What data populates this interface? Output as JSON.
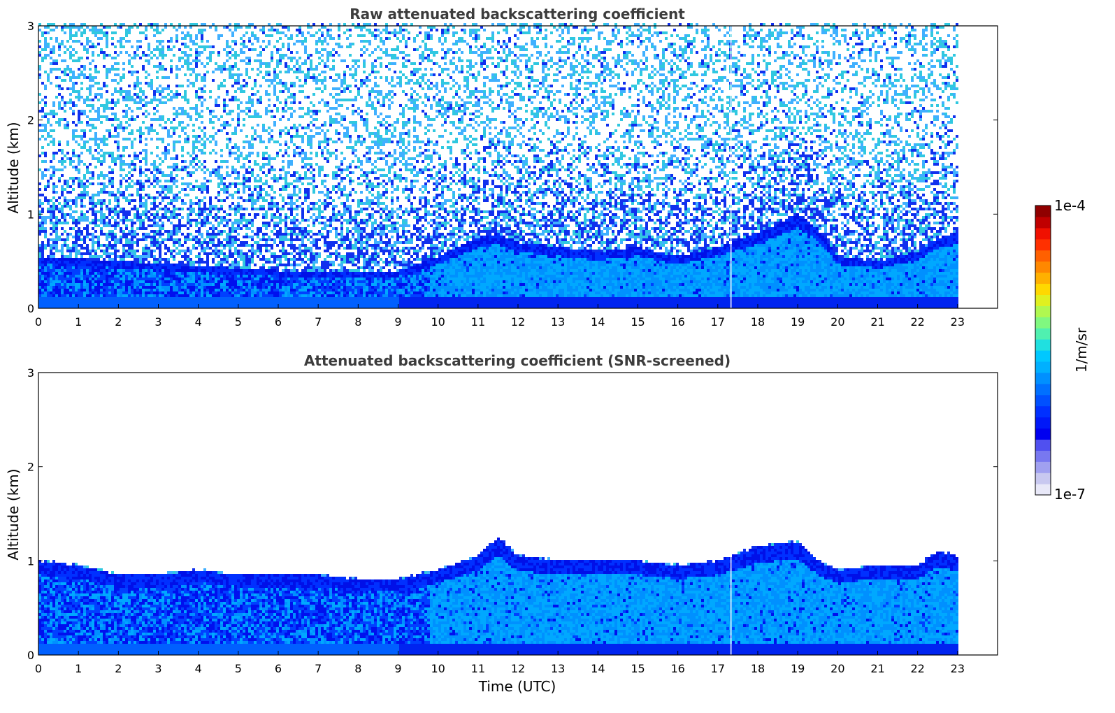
{
  "chart_data": [
    {
      "type": "heatmap",
      "title": "Raw attenuated backscattering coefficient",
      "xlabel": "",
      "ylabel": "Altitude (km)",
      "xlim": [
        0,
        24
      ],
      "ylim": [
        0,
        3
      ],
      "x_ticks": [
        "0",
        "1",
        "2",
        "3",
        "4",
        "5",
        "6",
        "7",
        "8",
        "9",
        "10",
        "11",
        "12",
        "13",
        "14",
        "15",
        "16",
        "17",
        "18",
        "19",
        "20",
        "21",
        "22",
        "23"
      ],
      "y_ticks": [
        "0",
        "1",
        "2",
        "3"
      ],
      "data_extent_x": [
        0,
        23
      ],
      "gap_at_x": 17.33,
      "noise_top_km": 3.0,
      "aerosol_top_km": [
        [
          0,
          0.55
        ],
        [
          2,
          0.5
        ],
        [
          4,
          0.45
        ],
        [
          6,
          0.4
        ],
        [
          8,
          0.38
        ],
        [
          9,
          0.4
        ],
        [
          10,
          0.55
        ],
        [
          11,
          0.75
        ],
        [
          11.5,
          0.8
        ],
        [
          12,
          0.7
        ],
        [
          13,
          0.65
        ],
        [
          14,
          0.6
        ],
        [
          15,
          0.65
        ],
        [
          16,
          0.55
        ],
        [
          17,
          0.65
        ],
        [
          18,
          0.8
        ],
        [
          19,
          1.0
        ],
        [
          19.5,
          0.85
        ],
        [
          20,
          0.55
        ],
        [
          21,
          0.5
        ],
        [
          22,
          0.6
        ],
        [
          22.5,
          0.75
        ],
        [
          23,
          0.8
        ]
      ],
      "grid": false,
      "colorbar": true
    },
    {
      "type": "heatmap",
      "title": "Attenuated backscattering coefficient (SNR-screened)",
      "xlabel": "Time (UTC)",
      "ylabel": "Altitude (km)",
      "xlim": [
        0,
        24
      ],
      "ylim": [
        0,
        3
      ],
      "x_ticks": [
        "0",
        "1",
        "2",
        "3",
        "4",
        "5",
        "6",
        "7",
        "8",
        "9",
        "10",
        "11",
        "12",
        "13",
        "14",
        "15",
        "16",
        "17",
        "18",
        "19",
        "20",
        "21",
        "22",
        "23"
      ],
      "y_ticks": [
        "0",
        "1",
        "2",
        "3"
      ],
      "data_extent_x": [
        0,
        23
      ],
      "gap_at_x": 17.33,
      "layer_top_km": [
        [
          0,
          1.0
        ],
        [
          1,
          0.95
        ],
        [
          2,
          0.85
        ],
        [
          3,
          0.85
        ],
        [
          4,
          0.9
        ],
        [
          5,
          0.85
        ],
        [
          6,
          0.85
        ],
        [
          7,
          0.85
        ],
        [
          8,
          0.8
        ],
        [
          9,
          0.8
        ],
        [
          10,
          0.9
        ],
        [
          11,
          1.05
        ],
        [
          11.5,
          1.25
        ],
        [
          12,
          1.05
        ],
        [
          13,
          1.0
        ],
        [
          14,
          1.0
        ],
        [
          15,
          1.0
        ],
        [
          16,
          0.95
        ],
        [
          17,
          1.0
        ],
        [
          18,
          1.15
        ],
        [
          19,
          1.2
        ],
        [
          19.5,
          1.0
        ],
        [
          20,
          0.9
        ],
        [
          21,
          0.95
        ],
        [
          22,
          0.95
        ],
        [
          22.5,
          1.1
        ],
        [
          23,
          1.05
        ]
      ],
      "grid": false,
      "colorbar": true
    }
  ],
  "colorbar": {
    "label": "1/m/sr",
    "min_label": "1e-7",
    "max_label": "1e-4",
    "scale": "log",
    "colors": [
      "#e8e8f8",
      "#c8c8f0",
      "#a0a0f0",
      "#7878f0",
      "#5050f0",
      "#0000f0",
      "#0018f8",
      "#0030ff",
      "#0050ff",
      "#0070ff",
      "#0090ff",
      "#00b0ff",
      "#00c8ff",
      "#20e0e0",
      "#50f0b0",
      "#80f880",
      "#b0f850",
      "#e0f020",
      "#ffd800",
      "#ffb000",
      "#ff8800",
      "#ff6000",
      "#ff3000",
      "#f01000",
      "#c00000",
      "#900000"
    ]
  }
}
